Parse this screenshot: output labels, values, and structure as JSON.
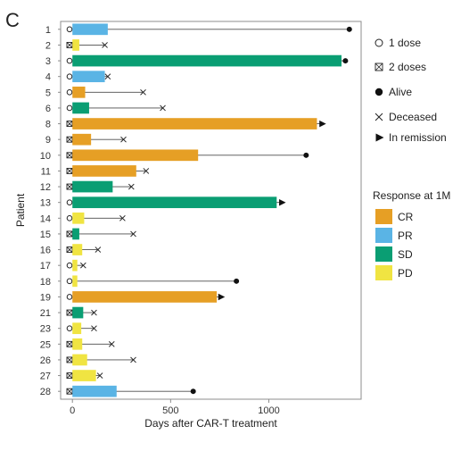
{
  "panel_label": "C",
  "colors": {
    "CR": "#E69F25",
    "PR": "#5AB4E5",
    "SD": "#0A9E73",
    "PD": "#F0E442",
    "axis": "#8c8c8c",
    "line": "#4d4d4d"
  },
  "icons": {
    "one_dose": "open-circle-icon",
    "two_doses": "boxed-x-icon",
    "alive": "filled-circle-icon",
    "deceased": "x-cross-icon",
    "in_remission": "right-triangle-icon"
  },
  "chart_data": {
    "type": "bar",
    "orientation": "horizontal",
    "xlabel": "Days after CAR-T treatment",
    "ylabel": "Patient",
    "xlim": [
      -60,
      1470
    ],
    "xticks": [
      0,
      500,
      1000
    ],
    "grid": false,
    "legend_position": "right",
    "patients": [
      {
        "id": "1",
        "dose": "1 dose",
        "response": "PR",
        "response_days": 180,
        "followup_days": 1410,
        "status": "Alive"
      },
      {
        "id": "2",
        "dose": "2 doses",
        "response": "PD",
        "response_days": 35,
        "followup_days": 165,
        "status": "Deceased"
      },
      {
        "id": "3",
        "dose": "1 dose",
        "response": "SD",
        "response_days": 1370,
        "followup_days": 1390,
        "status": "Alive"
      },
      {
        "id": "4",
        "dose": "1 dose",
        "response": "PR",
        "response_days": 165,
        "followup_days": 180,
        "status": "Deceased"
      },
      {
        "id": "5",
        "dose": "1 dose",
        "response": "CR",
        "response_days": 65,
        "followup_days": 360,
        "status": "Deceased"
      },
      {
        "id": "6",
        "dose": "1 dose",
        "response": "SD",
        "response_days": 85,
        "followup_days": 460,
        "status": "Deceased"
      },
      {
        "id": "8",
        "dose": "2 doses",
        "response": "CR",
        "response_days": 1245,
        "followup_days": 1270,
        "status": "In remission"
      },
      {
        "id": "9",
        "dose": "2 doses",
        "response": "CR",
        "response_days": 95,
        "followup_days": 260,
        "status": "Deceased"
      },
      {
        "id": "10",
        "dose": "2 doses",
        "response": "CR",
        "response_days": 640,
        "followup_days": 1190,
        "status": "Alive"
      },
      {
        "id": "11",
        "dose": "2 doses",
        "response": "CR",
        "response_days": 325,
        "followup_days": 375,
        "status": "Deceased"
      },
      {
        "id": "12",
        "dose": "2 doses",
        "response": "SD",
        "response_days": 205,
        "followup_days": 300,
        "status": "Deceased"
      },
      {
        "id": "13",
        "dose": "1 dose",
        "response": "SD",
        "response_days": 1040,
        "followup_days": 1065,
        "status": "In remission"
      },
      {
        "id": "14",
        "dose": "1 dose",
        "response": "PD",
        "response_days": 60,
        "followup_days": 255,
        "status": "Deceased"
      },
      {
        "id": "15",
        "dose": "2 doses",
        "response": "SD",
        "response_days": 35,
        "followup_days": 310,
        "status": "Deceased"
      },
      {
        "id": "16",
        "dose": "2 doses",
        "response": "PD",
        "response_days": 50,
        "followup_days": 130,
        "status": "Deceased"
      },
      {
        "id": "17",
        "dose": "1 dose",
        "response": "PD",
        "response_days": 25,
        "followup_days": 55,
        "status": "Deceased"
      },
      {
        "id": "18",
        "dose": "1 dose",
        "response": "PD",
        "response_days": 25,
        "followup_days": 835,
        "status": "Alive"
      },
      {
        "id": "19",
        "dose": "1 dose",
        "response": "CR",
        "response_days": 735,
        "followup_days": 755,
        "status": "In remission"
      },
      {
        "id": "21",
        "dose": "2 doses",
        "response": "SD",
        "response_days": 55,
        "followup_days": 110,
        "status": "Deceased"
      },
      {
        "id": "23",
        "dose": "1 dose",
        "response": "PD",
        "response_days": 45,
        "followup_days": 110,
        "status": "Deceased"
      },
      {
        "id": "25",
        "dose": "2 doses",
        "response": "PD",
        "response_days": 50,
        "followup_days": 200,
        "status": "Deceased"
      },
      {
        "id": "26",
        "dose": "2 doses",
        "response": "PD",
        "response_days": 75,
        "followup_days": 310,
        "status": "Deceased"
      },
      {
        "id": "27",
        "dose": "2 doses",
        "response": "PD",
        "response_days": 120,
        "followup_days": 140,
        "status": "Deceased"
      },
      {
        "id": "28",
        "dose": "2 doses",
        "response": "PR",
        "response_days": 225,
        "followup_days": 615,
        "status": "Alive"
      }
    ],
    "symbol_legend": [
      {
        "key": "one_dose",
        "label": "1 dose"
      },
      {
        "key": "two_doses",
        "label": "2 doses"
      },
      {
        "key": "alive",
        "label": "Alive"
      },
      {
        "key": "deceased",
        "label": "Deceased"
      },
      {
        "key": "in_remission",
        "label": "In remission"
      }
    ],
    "response_legend": {
      "title": "Response at 1M",
      "entries": [
        "CR",
        "PR",
        "SD",
        "PD"
      ]
    }
  }
}
